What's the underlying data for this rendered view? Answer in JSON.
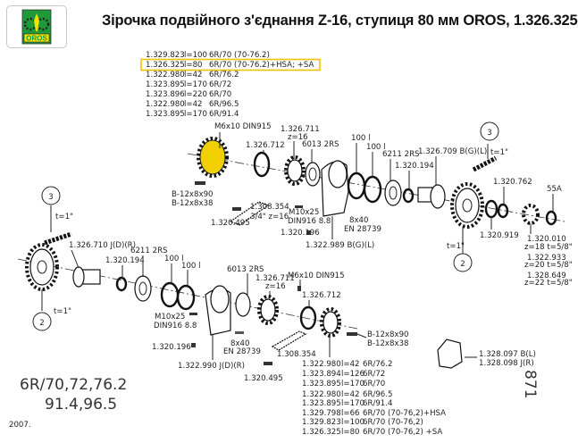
{
  "header": {
    "title": "Зірочка подвійного з'єднання Z-16, ступиця 80 мм OROS, 1.326.325",
    "logo_text": "OROS"
  },
  "colors": {
    "highlight": "#f2c200",
    "logo_green": "#1f9a3a",
    "logo_yellow": "#f5e200",
    "part_highlight": "#f0d000"
  },
  "top_table": [
    {
      "part": "1.329.823",
      "l": "l=100",
      "spec": "6R/70 (70-76.2)"
    },
    {
      "part": "1.326.325",
      "l": "l=80",
      "spec": "6R/70 (70-76.2)+HSA; +SA"
    },
    {
      "part": "1.322.980",
      "l": "l=42",
      "spec": "6R/76.2"
    },
    {
      "part": "1.323.895",
      "l": "l=170",
      "spec": "6R/72"
    },
    {
      "part": "1.323.896",
      "l": "l=220",
      "spec": "6R/70"
    },
    {
      "part": "1.322.980",
      "l": "l=42",
      "spec": "6R/96.5"
    },
    {
      "part": "1.323.895",
      "l": "l=170",
      "spec": "6R/91.4"
    }
  ],
  "bottom_table": [
    {
      "part": "1.322.980",
      "l": "l=42",
      "spec": "6R/76.2"
    },
    {
      "part": "1.323.894",
      "l": "l=126",
      "spec": "6R/72"
    },
    {
      "part": "1.323.895",
      "l": "l=170",
      "spec": "6R/70"
    },
    {
      "part": "1.322.980",
      "l": "l=42",
      "spec": "6R/96.5"
    },
    {
      "part": "1.323.895",
      "l": "l=170",
      "spec": "6R/91.4"
    },
    {
      "part": "1.329.798",
      "l": "l=66",
      "spec": "6R/70 (70-76,2)+HSA"
    },
    {
      "part": "1.329.823",
      "l": "l=100",
      "spec": "6R/70 (70-76,2)"
    },
    {
      "part": "1.326.325",
      "l": "l=80",
      "spec": "6R/70 (70-76,2) +SA"
    }
  ],
  "labels": [
    "M6x10 DIN915",
    "1.326.711",
    "z=16",
    "1.326.712",
    "6013 2RS",
    "100 l",
    "100 l",
    "6211 2RS",
    "1.320.194",
    "1.326.709 B(G)(L)",
    "t=1\"",
    "1.320.762",
    "55A",
    "B-12x8x90",
    "B-12x8x38",
    "1.308.354",
    "3/4\" z=16",
    "1.320.495",
    "M10x25",
    "DIN916 8.8",
    "8x40",
    "EN 28739",
    "1.320.196",
    "1.322.989 B(G)(L)",
    "1.320.919",
    "1.320.010",
    "z=18 t=5/8\"",
    "1.322.933",
    "z=20 t=5/8\"",
    "1.328.649",
    "z=22 t=5/8\"",
    "t=1\"",
    "t=1\"",
    "1.326.710 J(D)(R)",
    "1.320.194",
    "6211 2RS",
    "100 l",
    "100 l",
    "t=1\"",
    "6013 2RS",
    "1.326.711",
    "z=16",
    "M6x10 DIN915",
    "1.326.712",
    "M10x25",
    "DIN916 8.8",
    "1.320.196",
    "8x40",
    "EN 28739",
    "1.322.990 J(D)(R)",
    "1.308.354",
    "1.320.495",
    "B-12x8x90",
    "B-12x8x38",
    "1.328.097 B(L)",
    "1.328.098 J(R)"
  ],
  "callouts": [
    "3",
    "2",
    "3",
    "2"
  ],
  "footer": {
    "sizes_line1": "6R/70,72,76.2",
    "sizes_line2": "91.4,96.5",
    "year": "2007.",
    "page_number": "871"
  }
}
